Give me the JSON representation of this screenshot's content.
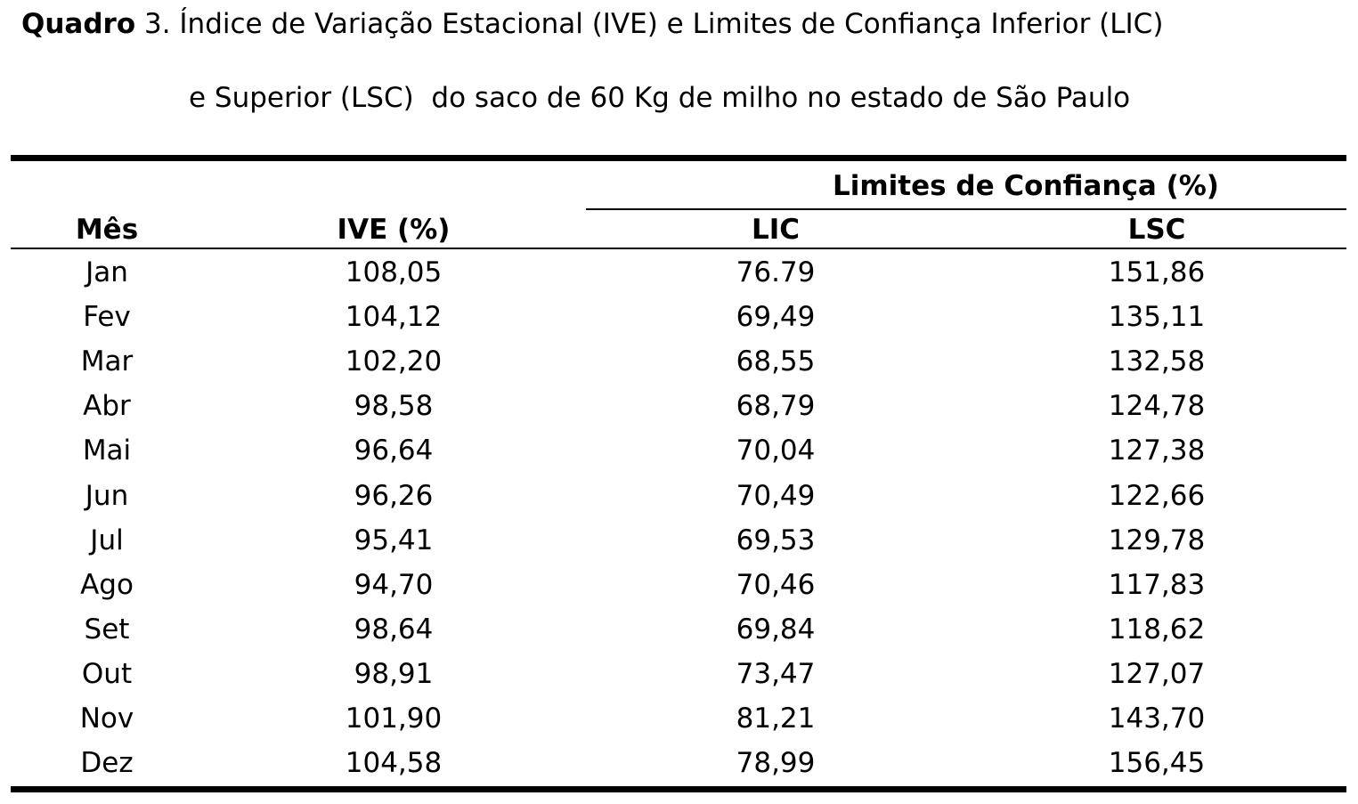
{
  "header": {
    "label": "Quadro",
    "line1": "3. Índice de Variação Estacional (IVE) e Limites de Confiança Inferior (LIC)",
    "line2": "e Superior (LSC)  do saco de 60 Kg de milho no estado de São Paulo"
  },
  "table": {
    "group_header": "Limites de Confiança (%)",
    "columns": [
      "Mês",
      "IVE (%)",
      "LIC",
      "LSC"
    ],
    "rows": [
      [
        "Jan",
        "108,05",
        "76.79",
        "151,86"
      ],
      [
        "Fev",
        "104,12",
        "69,49",
        "135,11"
      ],
      [
        "Mar",
        "102,20",
        "68,55",
        "132,58"
      ],
      [
        "Abr",
        "98,58",
        "68,79",
        "124,78"
      ],
      [
        "Mai",
        "96,64",
        "70,04",
        "127,38"
      ],
      [
        "Jun",
        "96,26",
        "70,49",
        "122,66"
      ],
      [
        "Jul",
        "95,41",
        "69,53",
        "129,78"
      ],
      [
        "Ago",
        "94,70",
        "70,46",
        "117,83"
      ],
      [
        "Set",
        "98,64",
        "69,84",
        "118,62"
      ],
      [
        "Out",
        "98,91",
        "73,47",
        "127,07"
      ],
      [
        "Nov",
        "101,90",
        "81,21",
        "143,70"
      ],
      [
        "Dez",
        "104,58",
        "78,99",
        "156,45"
      ]
    ]
  }
}
